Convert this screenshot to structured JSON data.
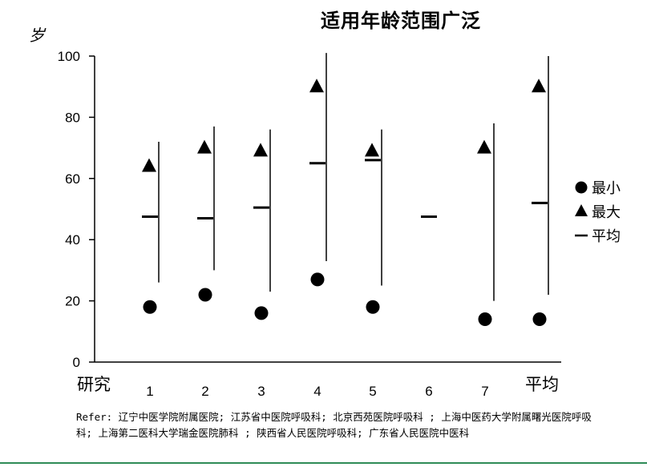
{
  "chart_data": {
    "type": "scatter",
    "title": "适用年龄范围广泛",
    "ylabel": "岁",
    "xlabel_left": "研究",
    "categories": [
      "1",
      "2",
      "3",
      "4",
      "5",
      "6",
      "7",
      "平均"
    ],
    "ylim": [
      0,
      100
    ],
    "yticks": [
      0,
      20,
      40,
      60,
      80,
      100
    ],
    "series": [
      {
        "name": "最小",
        "marker": "circle",
        "values": [
          18,
          22,
          16,
          27,
          18,
          null,
          14,
          14
        ]
      },
      {
        "name": "最大",
        "marker": "triangle",
        "values": [
          64,
          70,
          69,
          90,
          69,
          null,
          70,
          90
        ]
      },
      {
        "name": "平均",
        "marker": "dash",
        "values": [
          47.5,
          47,
          50.5,
          65,
          66,
          47.5,
          null,
          52
        ]
      }
    ],
    "error_bars": [
      {
        "low": 26,
        "high": 72
      },
      {
        "low": 30,
        "high": 77
      },
      {
        "low": 23,
        "high": 76
      },
      {
        "low": 33,
        "high": 101
      },
      {
        "low": 25,
        "high": 76
      },
      null,
      {
        "low": 20,
        "high": 78
      },
      {
        "low": 22,
        "high": 100
      }
    ],
    "legend_position": "right",
    "grid": false
  },
  "note": "Refer: 辽宁中医学院附属医院; 江苏省中医院呼吸科; 北京西苑医院呼吸科 ; 上海中医药大学附属曙光医院呼吸科; 上海第二医科大学瑞金医院肺科 ; 陕西省人民医院呼吸科; 广东省人民医院中医科"
}
